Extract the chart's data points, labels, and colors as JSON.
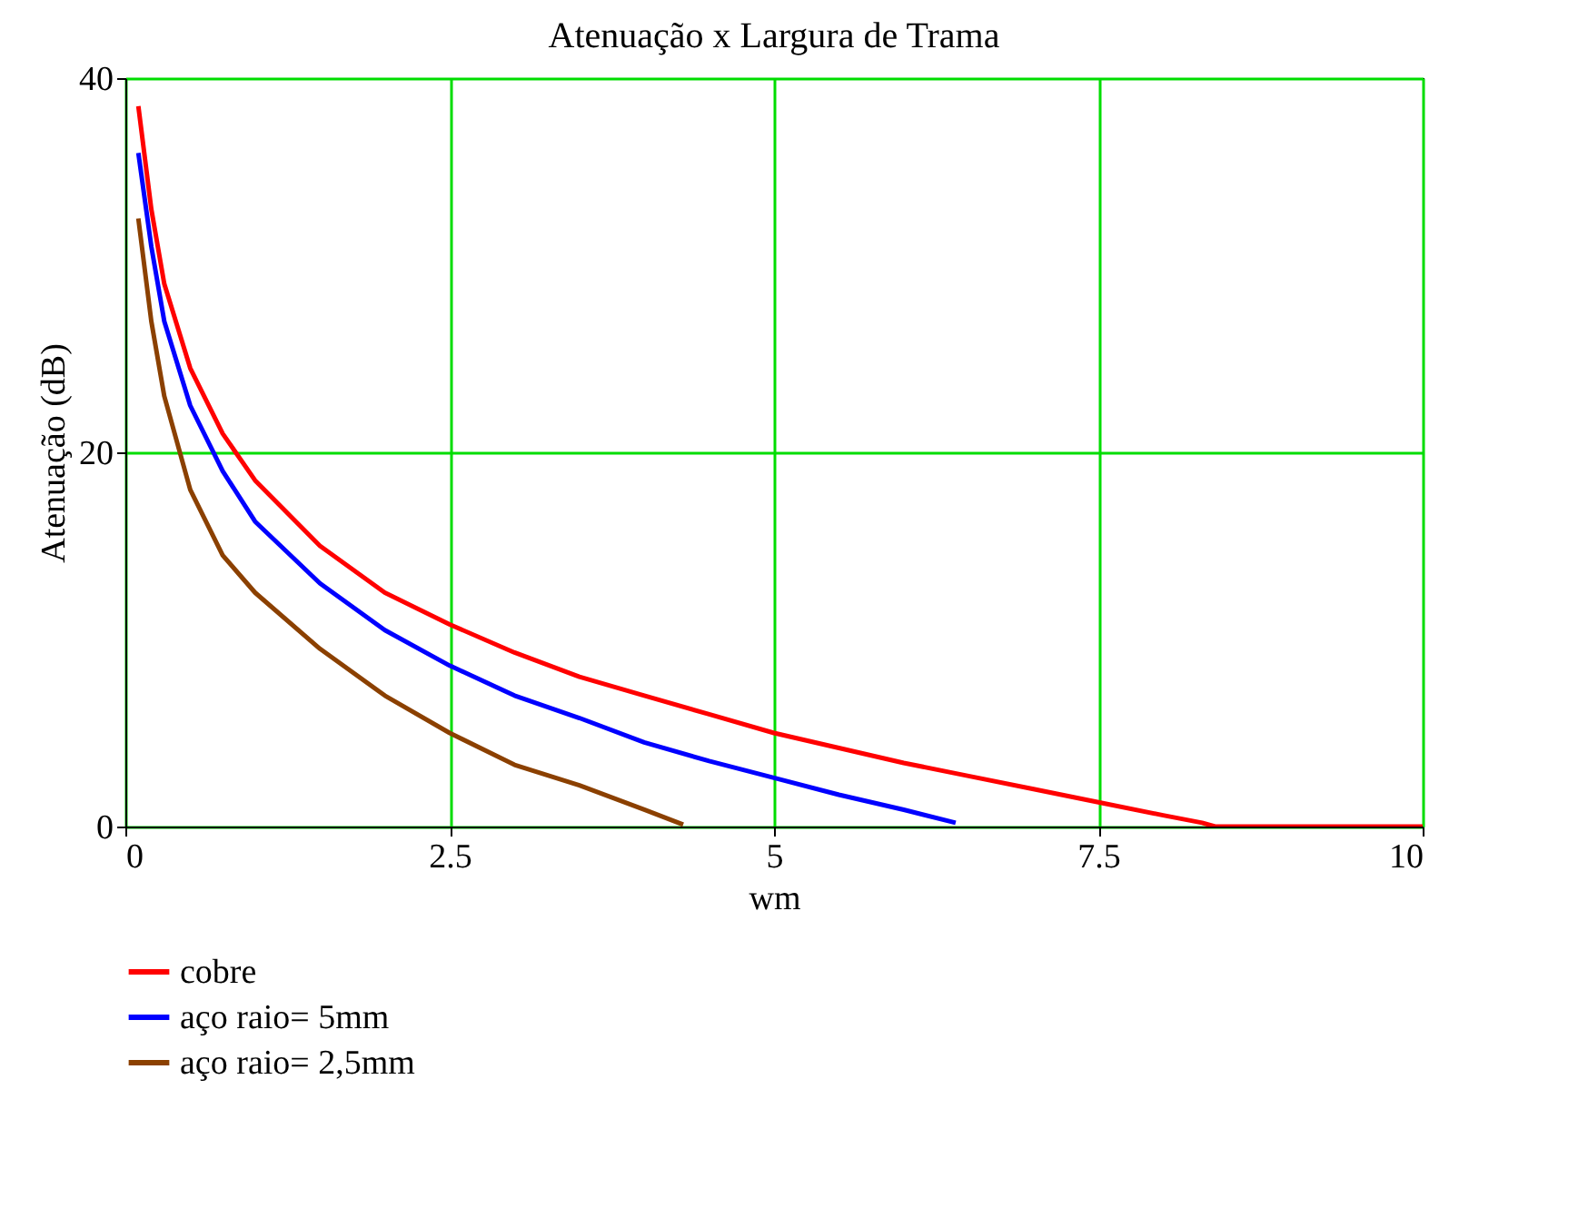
{
  "chart_data": {
    "type": "line",
    "title": "Atenuação x Largura de Trama",
    "xlabel": "wm",
    "ylabel": "Atenuação (dB)",
    "xlim": [
      0,
      10
    ],
    "xticks": [
      0,
      2.5,
      5,
      7.5,
      10
    ],
    "ylim": [
      0,
      40
    ],
    "yticks": [
      0,
      20,
      40
    ],
    "grid": true,
    "legend": "bottom",
    "marker": "none",
    "line_style": "solid",
    "series": [
      {
        "name": "cobre",
        "color": "#ff0000",
        "x": [
          0.1,
          0.2,
          0.3,
          0.5,
          0.75,
          1,
          1.5,
          2,
          2.5,
          3,
          3.5,
          4,
          4.5,
          5,
          5.5,
          6,
          6.5,
          7,
          7.5,
          8,
          8.3,
          8.4,
          10
        ],
        "values": [
          38.5,
          33,
          29,
          24.5,
          21,
          18.5,
          15,
          12.5,
          10.8,
          9.3,
          8,
          7,
          6,
          5,
          4.2,
          3.4,
          2.7,
          2,
          1.3,
          0.6,
          0.2,
          0,
          0
        ]
      },
      {
        "name": "aço raio= 5mm",
        "color": "#0000ff",
        "x": [
          0.1,
          0.2,
          0.3,
          0.5,
          0.75,
          1,
          1.5,
          2,
          2.5,
          3,
          3.5,
          4,
          4.5,
          5,
          5.5,
          6,
          6.4
        ],
        "values": [
          36,
          31,
          27,
          22.5,
          19,
          16.3,
          13,
          10.5,
          8.6,
          7,
          5.8,
          4.5,
          3.5,
          2.6,
          1.7,
          0.9,
          0.2
        ]
      },
      {
        "name": "aço raio= 2,5mm",
        "color": "#8b4000",
        "x": [
          0.1,
          0.2,
          0.3,
          0.5,
          0.75,
          1,
          1.5,
          2,
          2.5,
          3,
          3.5,
          4,
          4.3
        ],
        "values": [
          32.5,
          27,
          23,
          18,
          14.5,
          12.5,
          9.5,
          7,
          5,
          3.3,
          2.2,
          0.9,
          0.1
        ]
      }
    ]
  }
}
